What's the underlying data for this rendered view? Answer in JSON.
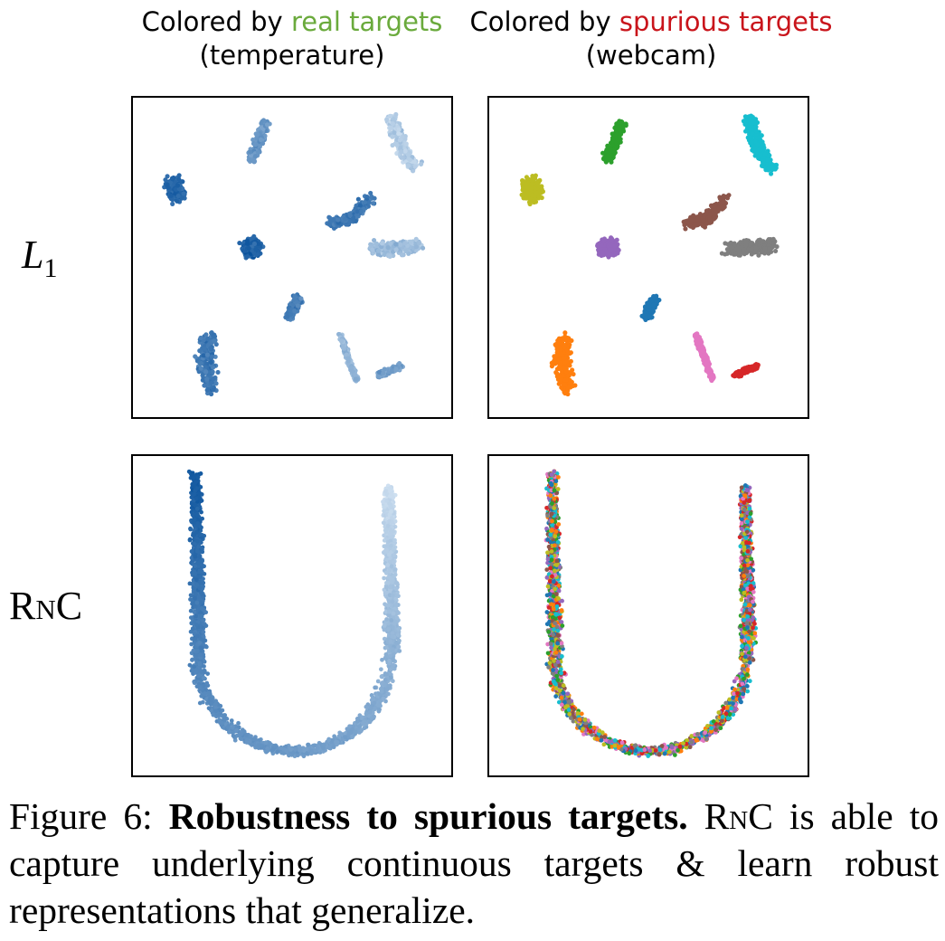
{
  "titles": {
    "left_prefix": "Colored by ",
    "left_highlight": "real targets",
    "left_sub": "(temperature)",
    "right_prefix": "Colored by ",
    "right_highlight": "spurious targets",
    "right_sub": "(webcam)"
  },
  "row_labels": {
    "top_base": "L",
    "top_sub": "1",
    "bottom": "RnC"
  },
  "caption": {
    "figure": "Figure 6:",
    "bold": "Robustness to spurious targets.",
    "method": "RnC",
    "rest": " is able to capture underlying continuous targets & learn robust representations that generalize."
  },
  "colors": {
    "blues_dark": "#08519c",
    "blues_light": "#deebf7",
    "tab10": [
      "#1f77b4",
      "#ff7f0e",
      "#2ca02c",
      "#d62728",
      "#9467bd",
      "#8c564b",
      "#e377c2",
      "#7f7f7f",
      "#bcbd22",
      "#17becf"
    ],
    "title_green": "#6aaa3c",
    "title_red": "#c9141b"
  }
}
